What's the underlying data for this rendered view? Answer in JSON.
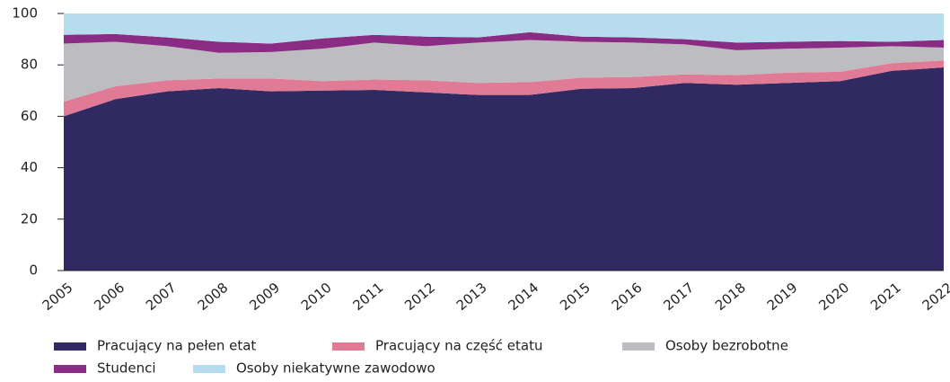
{
  "chart_data": {
    "type": "stacked-area",
    "categories": [
      "2005",
      "2006",
      "2007",
      "2008",
      "2009",
      "2010",
      "2011",
      "2012",
      "2013",
      "2014",
      "2015",
      "2016",
      "2017",
      "2018",
      "2019",
      "2020",
      "2021",
      "2022"
    ],
    "series": [
      {
        "name": "Pracujący na pełen etat",
        "color": "#312a62",
        "values": [
          60,
          66.7,
          69.7,
          71,
          69.7,
          70,
          70.3,
          69.3,
          68.3,
          68.3,
          70.7,
          71,
          73,
          72.3,
          73,
          73.7,
          77.7,
          79
        ]
      },
      {
        "name": "Pracujący na część etatu",
        "color": "#e07a95",
        "values": [
          5.7,
          5,
          4.3,
          3.7,
          5,
          3.7,
          4,
          4.7,
          4.7,
          5,
          4.3,
          4.3,
          3.3,
          3.7,
          4,
          3.6,
          3,
          2.7
        ]
      },
      {
        "name": "Osoby bezrobotne",
        "color": "#bdbcc0",
        "values": [
          22.6,
          17.3,
          13.3,
          10,
          10.3,
          12.6,
          14.4,
          13.3,
          15.7,
          16.4,
          14,
          13.4,
          11.7,
          9.7,
          9.3,
          9.4,
          6.6,
          5
        ]
      },
      {
        "name": "Studenci",
        "color": "#8b2c84",
        "values": [
          3.4,
          3,
          3.4,
          4.3,
          3.3,
          4,
          3,
          3.7,
          2,
          3,
          2,
          2,
          2,
          3,
          2.7,
          2.6,
          1.7,
          3
        ]
      },
      {
        "name": "Osoby niekatywne zawodowo",
        "color": "#b6dcee",
        "values": [
          8.3,
          8,
          9.3,
          11,
          11.7,
          9.7,
          8.3,
          9,
          9.3,
          7.3,
          9,
          9.3,
          10,
          11.3,
          11,
          10.7,
          11,
          10.3
        ]
      }
    ],
    "ylim": [
      0,
      100
    ],
    "yticks": [
      0,
      20,
      40,
      60,
      80,
      100
    ]
  }
}
